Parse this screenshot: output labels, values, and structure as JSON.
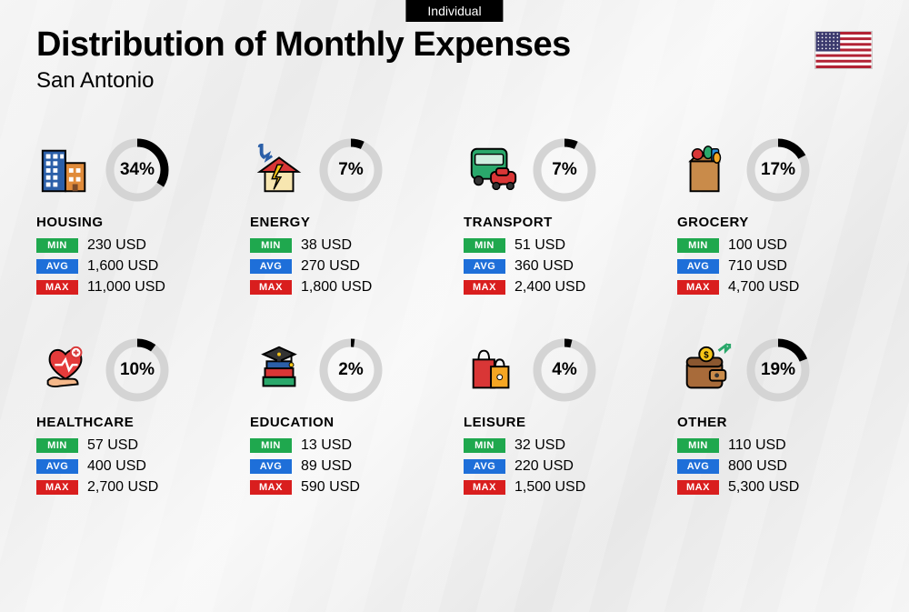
{
  "badge": "Individual",
  "title": "Distribution of Monthly Expenses",
  "subtitle": "San Antonio",
  "flag": {
    "stripe_red": "#b22234",
    "stripe_white": "#ffffff",
    "canton": "#3c3b6e"
  },
  "donut": {
    "track_color": "#d4d4d4",
    "fill_color": "#000000",
    "stroke_width": 9,
    "radius": 30
  },
  "labels": {
    "min": "MIN",
    "avg": "AVG",
    "max": "MAX"
  },
  "label_colors": {
    "min": "#1fa84e",
    "avg": "#1e6fd9",
    "max": "#d91e1e"
  },
  "currency_suffix": "USD",
  "categories": [
    {
      "key": "housing",
      "name": "HOUSING",
      "pct": 34,
      "min": "230",
      "avg": "1,600",
      "max": "11,000",
      "icon": "buildings"
    },
    {
      "key": "energy",
      "name": "ENERGY",
      "pct": 7,
      "min": "38",
      "avg": "270",
      "max": "1,800",
      "icon": "house-energy"
    },
    {
      "key": "transport",
      "name": "TRANSPORT",
      "pct": 7,
      "min": "51",
      "avg": "360",
      "max": "2,400",
      "icon": "bus-car"
    },
    {
      "key": "grocery",
      "name": "GROCERY",
      "pct": 17,
      "min": "100",
      "avg": "710",
      "max": "4,700",
      "icon": "grocery-bag"
    },
    {
      "key": "healthcare",
      "name": "HEALTHCARE",
      "pct": 10,
      "min": "57",
      "avg": "400",
      "max": "2,700",
      "icon": "heart-hand"
    },
    {
      "key": "education",
      "name": "EDUCATION",
      "pct": 2,
      "min": "13",
      "avg": "89",
      "max": "590",
      "icon": "grad-books"
    },
    {
      "key": "leisure",
      "name": "LEISURE",
      "pct": 4,
      "min": "32",
      "avg": "220",
      "max": "1,500",
      "icon": "shopping-bags"
    },
    {
      "key": "other",
      "name": "OTHER",
      "pct": 19,
      "min": "110",
      "avg": "800",
      "max": "5,300",
      "icon": "wallet"
    }
  ]
}
